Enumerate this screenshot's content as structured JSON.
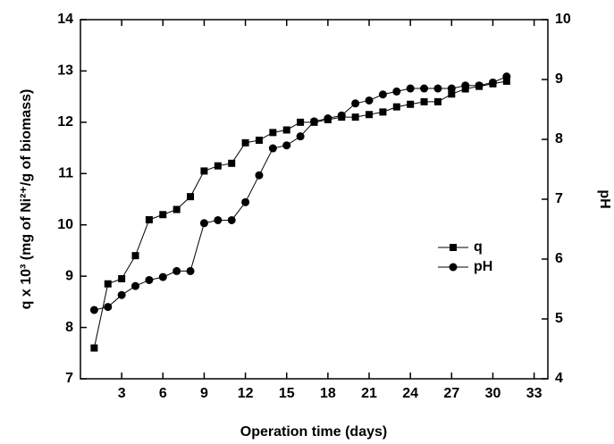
{
  "chart_data": {
    "type": "line",
    "xlabel": "Operation time (days)",
    "ylabel": "q x 10³ (mg of Ni²⁺/g of biomass)",
    "y2label": "pH",
    "x": [
      1,
      2,
      3,
      4,
      5,
      6,
      7,
      8,
      9,
      10,
      11,
      12,
      13,
      14,
      15,
      16,
      17,
      18,
      19,
      20,
      21,
      22,
      23,
      24,
      25,
      26,
      27,
      28,
      29,
      30,
      31
    ],
    "series": [
      {
        "name": "q",
        "color": "#000000",
        "marker": "square",
        "axis": "y",
        "values": [
          7.6,
          8.85,
          8.95,
          9.4,
          10.1,
          10.2,
          10.3,
          10.55,
          11.05,
          11.15,
          11.2,
          11.6,
          11.65,
          11.8,
          11.85,
          12.0,
          12.0,
          12.05,
          12.1,
          12.1,
          12.15,
          12.2,
          12.3,
          12.35,
          12.4,
          12.4,
          12.55,
          12.65,
          12.7,
          12.75,
          12.8
        ]
      },
      {
        "name": "pH",
        "color": "#000000",
        "marker": "circle",
        "axis": "y2",
        "values": [
          5.15,
          5.2,
          5.4,
          5.55,
          5.65,
          5.7,
          5.8,
          5.8,
          6.6,
          6.65,
          6.65,
          6.95,
          7.4,
          7.85,
          7.9,
          8.05,
          8.3,
          8.35,
          8.4,
          8.6,
          8.65,
          8.75,
          8.8,
          8.85,
          8.85,
          8.85,
          8.85,
          8.9,
          8.9,
          8.95,
          9.05
        ]
      }
    ],
    "xlim": [
      0,
      34
    ],
    "xticks": [
      3,
      6,
      9,
      12,
      15,
      18,
      21,
      24,
      27,
      30,
      33
    ],
    "ylim": [
      7,
      14
    ],
    "yticks": [
      7,
      8,
      9,
      10,
      11,
      12,
      13,
      14
    ],
    "y2lim": [
      4,
      10
    ],
    "y2ticks": [
      4,
      5,
      6,
      7,
      8,
      9,
      10
    ],
    "legend": "right"
  }
}
